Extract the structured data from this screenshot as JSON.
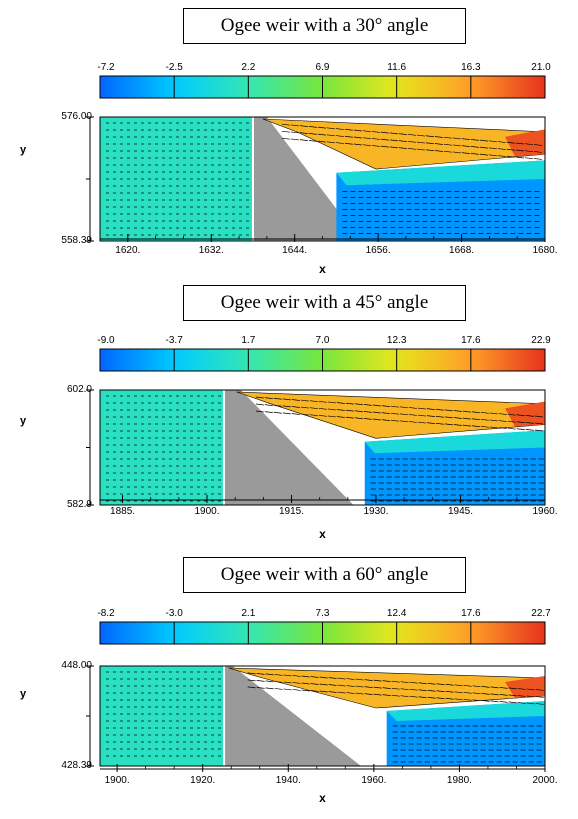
{
  "chart_data": [
    {
      "type": "heatmap",
      "title": "Ogee weir with a 30° angle",
      "colorbar_ticks": [
        "-7.2",
        "-2.5",
        "2.2",
        "6.9",
        "11.6",
        "16.3",
        "21.0"
      ],
      "colorbar_range": [
        -7.2,
        21.0
      ],
      "xlabel": "x",
      "ylabel": "y",
      "x_ticks": [
        "1620.",
        "1632.",
        "1644.",
        "1656.",
        "1668.",
        "1680."
      ],
      "y_ticks": [
        "576.00",
        "558.39"
      ],
      "xlim": [
        1616,
        1680
      ],
      "ylim": [
        558.39,
        576.0
      ],
      "weir_angle_deg": 30
    },
    {
      "type": "heatmap",
      "title": "Ogee weir with a 45° angle",
      "colorbar_ticks": [
        "-9.0",
        "-3.7",
        "1.7",
        "7.0",
        "12.3",
        "17.6",
        "22.9"
      ],
      "colorbar_range": [
        -9.0,
        22.9
      ],
      "xlabel": "x",
      "ylabel": "y",
      "x_ticks": [
        "1885.",
        "1900.",
        "1915.",
        "1930.",
        "1945.",
        "1960."
      ],
      "y_ticks": [
        "602.0",
        "582.9"
      ],
      "xlim": [
        1881,
        1960
      ],
      "ylim": [
        582.9,
        602.0
      ],
      "weir_angle_deg": 45
    },
    {
      "type": "heatmap",
      "title": "Ogee weir with a 60° angle",
      "colorbar_ticks": [
        "-8.2",
        "-3.0",
        "2.1",
        "7.3",
        "12.4",
        "17.6",
        "22.7"
      ],
      "colorbar_range": [
        -8.2,
        22.7
      ],
      "xlabel": "x",
      "ylabel": "y",
      "x_ticks": [
        "1900.",
        "1920.",
        "1940.",
        "1960.",
        "1980.",
        "2000."
      ],
      "y_ticks": [
        "448.00",
        "428.39"
      ],
      "xlim": [
        1896,
        2000
      ],
      "ylim": [
        428.39,
        448.0
      ],
      "weir_angle_deg": 60
    }
  ]
}
